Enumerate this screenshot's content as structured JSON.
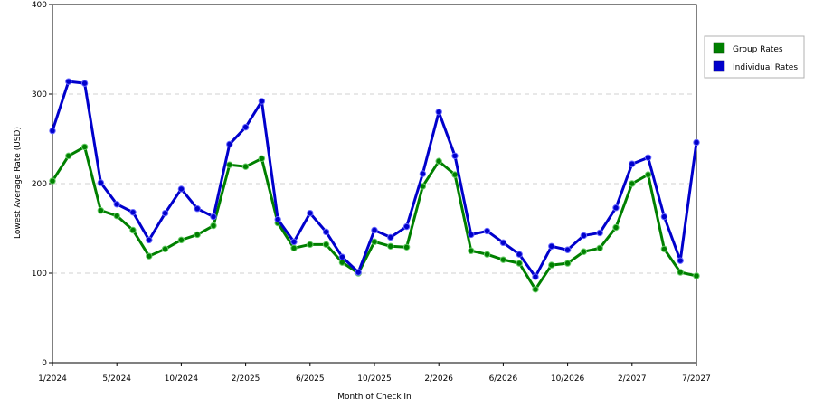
{
  "chart_data": {
    "type": "line",
    "title": "",
    "xlabel": "Month of Check In",
    "ylabel": "Lowest Average Rate (USD)",
    "ylim": [
      0,
      400
    ],
    "yticks": [
      0,
      100,
      200,
      300,
      400
    ],
    "grid": "horizontal dashed",
    "legend_placement": "right",
    "x_tick_labels": [
      "1/2024",
      "5/2024",
      "10/2024",
      "2/2025",
      "6/2025",
      "10/2025",
      "2/2026",
      "6/2026",
      "10/2026",
      "2/2027",
      "7/2027"
    ],
    "x_tick_indices": [
      0,
      4,
      8,
      12,
      16,
      20,
      24,
      28,
      32,
      36,
      40
    ],
    "series": [
      {
        "name": "Group Rates",
        "color": "#008000",
        "values": [
          203,
          231,
          241,
          170,
          164,
          148,
          119,
          127,
          137,
          143,
          153,
          221,
          219,
          228,
          156,
          128,
          132,
          132,
          112,
          100,
          135,
          130,
          129,
          197,
          225,
          210,
          125,
          121,
          115,
          111,
          82,
          109,
          111,
          124,
          128,
          151,
          200,
          210,
          127,
          101,
          97
        ]
      },
      {
        "name": "Individual Rates",
        "color": "#0000cc",
        "values": [
          259,
          314,
          312,
          201,
          177,
          168,
          137,
          167,
          194,
          172,
          163,
          244,
          263,
          292,
          160,
          135,
          167,
          146,
          118,
          101,
          148,
          140,
          152,
          211,
          280,
          231,
          143,
          147,
          134,
          121,
          96,
          130,
          126,
          142,
          145,
          173,
          222,
          229,
          163,
          114,
          246
        ]
      }
    ]
  }
}
